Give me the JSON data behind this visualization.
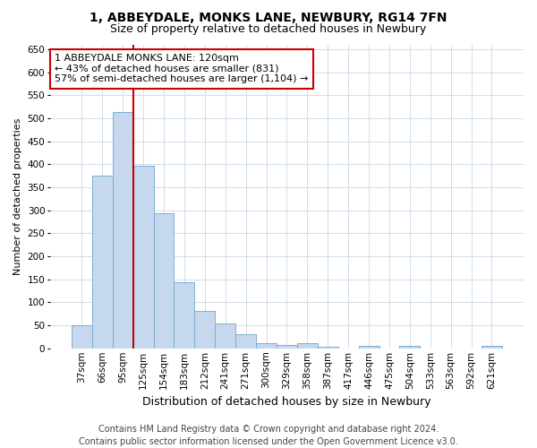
{
  "title": "1, ABBEYDALE, MONKS LANE, NEWBURY, RG14 7FN",
  "subtitle": "Size of property relative to detached houses in Newbury",
  "xlabel": "Distribution of detached houses by size in Newbury",
  "ylabel": "Number of detached properties",
  "categories": [
    "37sqm",
    "66sqm",
    "95sqm",
    "125sqm",
    "154sqm",
    "183sqm",
    "212sqm",
    "241sqm",
    "271sqm",
    "300sqm",
    "329sqm",
    "358sqm",
    "387sqm",
    "417sqm",
    "446sqm",
    "475sqm",
    "504sqm",
    "533sqm",
    "563sqm",
    "592sqm",
    "621sqm"
  ],
  "values": [
    50,
    375,
    513,
    397,
    293,
    143,
    82,
    55,
    30,
    12,
    8,
    12,
    3,
    0,
    5,
    0,
    5,
    0,
    0,
    0,
    5
  ],
  "bar_color": "#c5d8ed",
  "bar_edge_color": "#7bafd4",
  "vline_color": "#cc0000",
  "vline_x_index": 2.5,
  "annotation_text": "1 ABBEYDALE MONKS LANE: 120sqm\n← 43% of detached houses are smaller (831)\n57% of semi-detached houses are larger (1,104) →",
  "annotation_box_color": "#cc0000",
  "ylim": [
    0,
    660
  ],
  "yticks": [
    0,
    50,
    100,
    150,
    200,
    250,
    300,
    350,
    400,
    450,
    500,
    550,
    600,
    650
  ],
  "grid_color": "#c8d8e8",
  "background_color": "#ffffff",
  "footer_line1": "Contains HM Land Registry data © Crown copyright and database right 2024.",
  "footer_line2": "Contains public sector information licensed under the Open Government Licence v3.0.",
  "title_fontsize": 10,
  "subtitle_fontsize": 9,
  "ylabel_fontsize": 8,
  "xlabel_fontsize": 9,
  "tick_fontsize": 7.5,
  "annotation_fontsize": 8,
  "footer_fontsize": 7
}
